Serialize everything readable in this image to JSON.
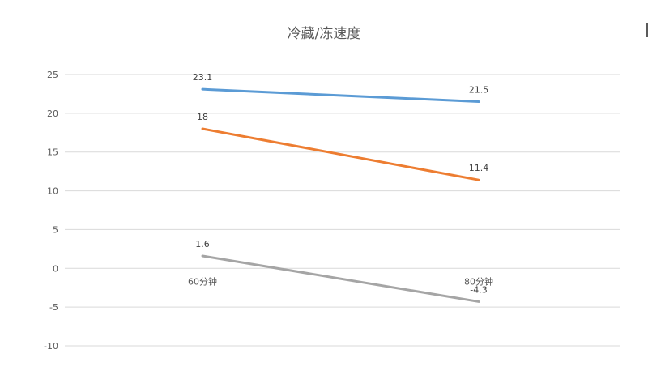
{
  "chart_data": {
    "type": "line",
    "title": "冷藏/冻速度",
    "categories": [
      "60分钟",
      "80分钟"
    ],
    "yticks": [
      "25",
      "20",
      "15",
      "10",
      "5",
      "0",
      "-5",
      "-10"
    ],
    "ylim": [
      -10,
      25
    ],
    "grid": true,
    "legend": "none",
    "series": [
      {
        "values": [
          23.1,
          21.5
        ],
        "labels": [
          "23.1",
          "21.5"
        ],
        "color": "#5B9BD5"
      },
      {
        "values": [
          18,
          11.4
        ],
        "labels": [
          "18",
          "11.4"
        ],
        "color": "#ED7D31"
      },
      {
        "values": [
          1.6,
          -4.3
        ],
        "labels": [
          "1.6",
          "-4.3"
        ],
        "color": "#A5A5A5"
      }
    ]
  }
}
